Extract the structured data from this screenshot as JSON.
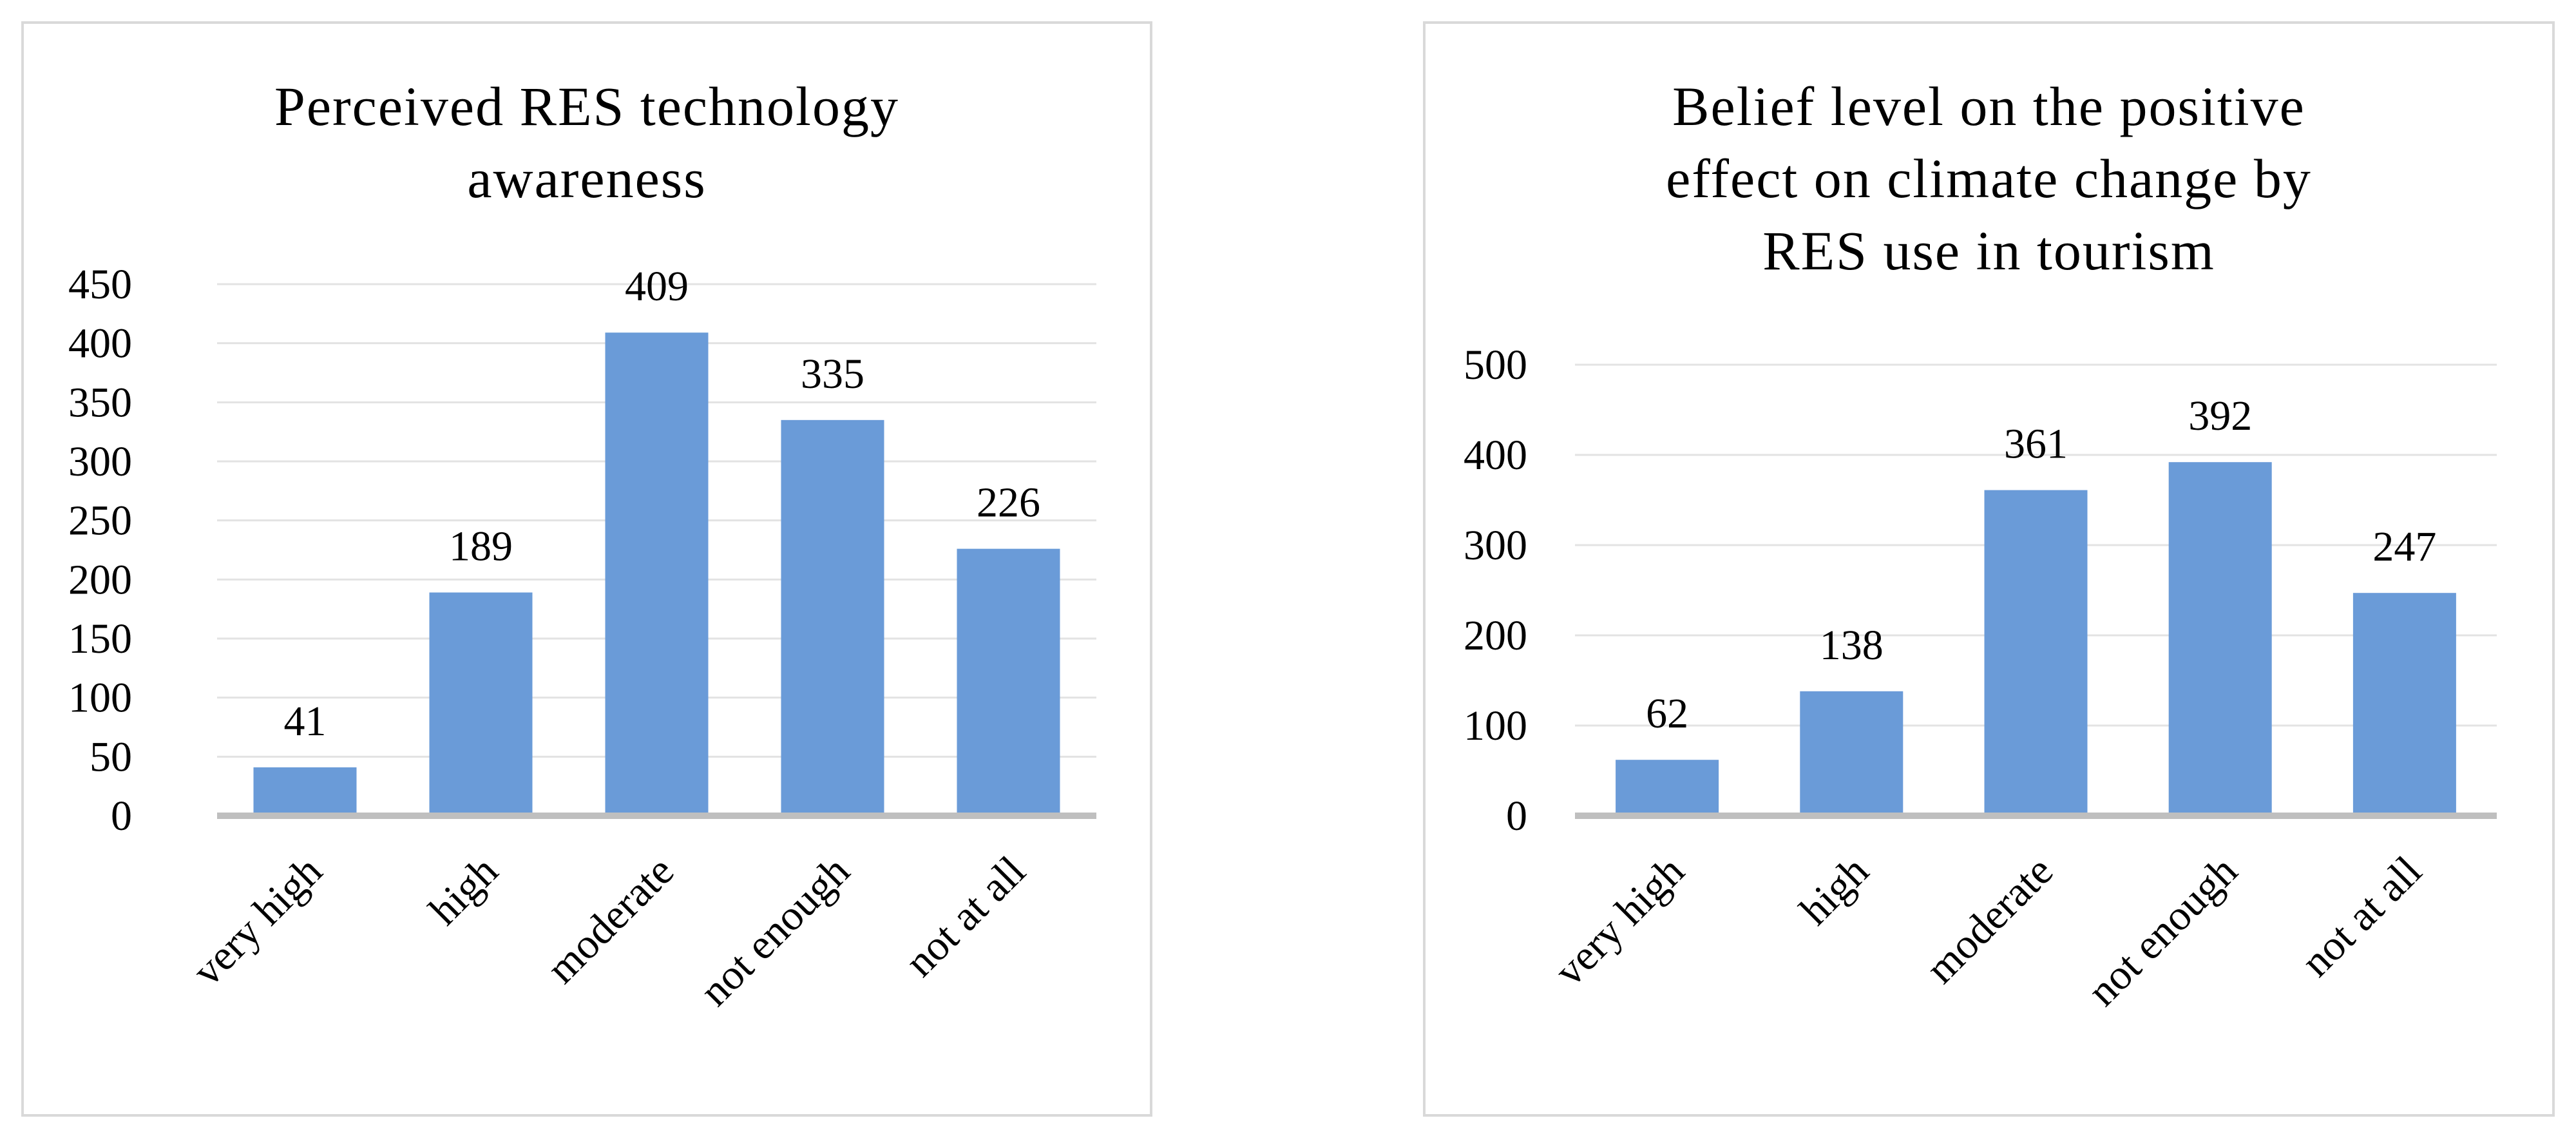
{
  "chart_data": [
    {
      "type": "bar",
      "title": "Perceived RES technology awareness",
      "title_lines": [
        "Perceived RES technology",
        "awareness"
      ],
      "categories": [
        "very high",
        "high",
        "moderate",
        "not enough",
        "not at all"
      ],
      "values": [
        41,
        189,
        409,
        335,
        226
      ],
      "ylim": [
        0,
        450
      ],
      "yticks": [
        0,
        50,
        100,
        150,
        200,
        250,
        300,
        350,
        400,
        450
      ],
      "grid": true,
      "legend": "none",
      "bar_color": "#6a9bd8",
      "data_labels": true
    },
    {
      "type": "bar",
      "title": "Belief level on the positive effect on climate change by RES use in tourism",
      "title_lines": [
        "Belief level on the positive",
        "effect on climate change by",
        "RES use in tourism"
      ],
      "categories": [
        "very high",
        "high",
        "moderate",
        "not enough",
        "not at all"
      ],
      "values": [
        62,
        138,
        361,
        392,
        247
      ],
      "ylim": [
        0,
        500
      ],
      "yticks": [
        0,
        100,
        200,
        300,
        400,
        500
      ],
      "grid": true,
      "legend": "none",
      "bar_color": "#6a9bd8",
      "data_labels": true
    }
  ]
}
